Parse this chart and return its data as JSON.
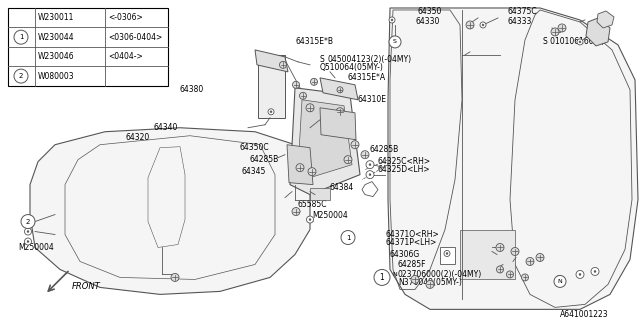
{
  "bg_color": "#ffffff",
  "diagram_code": "A641001223",
  "table_rows": [
    [
      "",
      "W230011",
      "<-0306>"
    ],
    [
      "1",
      "W230044",
      "<0306-0404>"
    ],
    [
      "",
      "W230046",
      "<0404->"
    ],
    [
      "2",
      "W080003",
      ""
    ]
  ],
  "line_color": "#555555",
  "text_color": "#000000",
  "seat_fill": "#f5f5f5",
  "mech_fill": "#e8e8e8"
}
